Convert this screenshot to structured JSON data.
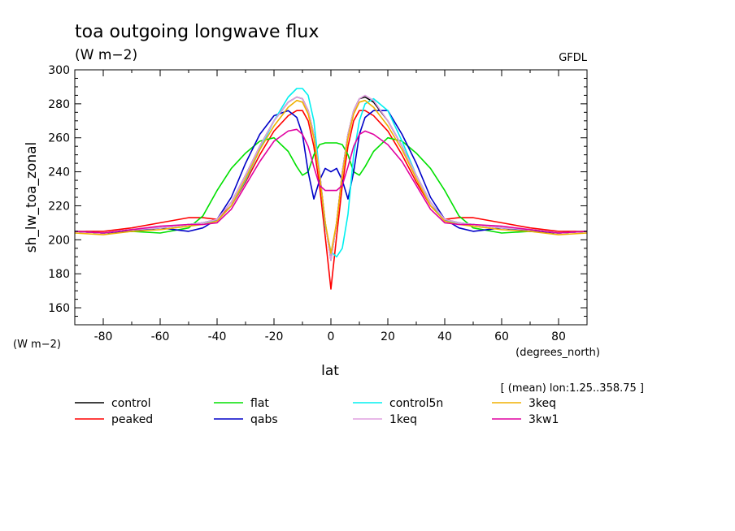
{
  "chart_data": {
    "type": "line",
    "title": "toa outgoing longwave flux",
    "subtitle": "(W m−2)",
    "source_label": "GFDL",
    "ylabel": "sh_lw_toa_zonal",
    "yunits": "(W m−2)",
    "xlabel": "lat",
    "xunits": "(degrees_north)",
    "note": "[ (mean) lon:1.25..358.75 ]",
    "xlim": [
      -90,
      90
    ],
    "ylim": [
      150,
      300
    ],
    "xticks": [
      -80,
      -60,
      -40,
      -20,
      0,
      20,
      40,
      60,
      80
    ],
    "yticks": [
      160,
      180,
      200,
      220,
      240,
      260,
      280,
      300
    ],
    "grid": false,
    "legend_position": "bottom",
    "x": [
      -90,
      -80,
      -70,
      -60,
      -50,
      -45,
      -40,
      -35,
      -30,
      -25,
      -20,
      -15,
      -12,
      -10,
      -8,
      -6,
      -4,
      -2,
      0,
      2,
      4,
      6,
      8,
      10,
      12,
      15,
      20,
      25,
      30,
      35,
      40,
      45,
      50,
      60,
      70,
      80,
      90
    ],
    "series": [
      {
        "name": "control",
        "color": "#000000",
        "values": [
          205,
          204,
          206,
          207,
          209,
          210,
          212,
          222,
          238,
          255,
          270,
          281,
          284,
          283,
          276,
          262,
          240,
          210,
          188,
          210,
          240,
          262,
          276,
          283,
          284,
          281,
          270,
          255,
          238,
          222,
          212,
          210,
          209,
          207,
          206,
          204,
          205
        ]
      },
      {
        "name": "peaked",
        "color": "#ff0000",
        "values": [
          205,
          205,
          207,
          210,
          213,
          213,
          212,
          220,
          234,
          250,
          264,
          273,
          276,
          276,
          270,
          255,
          232,
          202,
          171,
          202,
          232,
          255,
          270,
          276,
          276,
          273,
          264,
          250,
          234,
          220,
          212,
          213,
          213,
          210,
          207,
          205,
          205
        ]
      },
      {
        "name": "flat",
        "color": "#00e000",
        "values": [
          205,
          204,
          205,
          204,
          207,
          214,
          229,
          242,
          251,
          258,
          260,
          252,
          243,
          238,
          240,
          250,
          256,
          257,
          257,
          257,
          256,
          250,
          240,
          238,
          243,
          252,
          260,
          258,
          251,
          242,
          229,
          214,
          207,
          204,
          205,
          204,
          205
        ]
      },
      {
        "name": "qabs",
        "color": "#0000c8",
        "values": [
          205,
          204,
          205,
          207,
          205,
          207,
          212,
          225,
          245,
          262,
          273,
          276,
          272,
          262,
          240,
          224,
          235,
          242,
          240,
          242,
          235,
          224,
          240,
          262,
          272,
          276,
          276,
          262,
          245,
          225,
          212,
          207,
          205,
          207,
          205,
          204,
          205
        ]
      },
      {
        "name": "control5n",
        "color": "#00f0f0",
        "values": [
          205,
          204,
          206,
          207,
          209,
          210,
          211,
          220,
          235,
          253,
          270,
          284,
          289,
          289,
          285,
          270,
          240,
          208,
          193,
          190,
          195,
          215,
          250,
          270,
          280,
          283,
          276,
          258,
          238,
          222,
          211,
          210,
          209,
          207,
          206,
          204,
          205
        ]
      },
      {
        "name": "1keq",
        "color": "#e0a0e0",
        "values": [
          205,
          204,
          206,
          207,
          209,
          210,
          212,
          222,
          238,
          255,
          270,
          281,
          284,
          283,
          276,
          262,
          240,
          210,
          188,
          210,
          240,
          262,
          276,
          283,
          285,
          282,
          270,
          255,
          238,
          222,
          212,
          210,
          209,
          207,
          206,
          204,
          205
        ]
      },
      {
        "name": "3keq",
        "color": "#f0b000",
        "values": [
          204,
          203,
          205,
          206,
          208,
          209,
          211,
          220,
          236,
          253,
          267,
          278,
          282,
          281,
          274,
          260,
          238,
          210,
          192,
          210,
          238,
          260,
          274,
          281,
          282,
          278,
          267,
          253,
          236,
          220,
          211,
          209,
          208,
          206,
          205,
          203,
          204
        ]
      },
      {
        "name": "3kw1",
        "color": "#e000a0",
        "values": [
          205,
          204,
          206,
          208,
          209,
          209,
          210,
          218,
          232,
          246,
          258,
          264,
          265,
          262,
          255,
          243,
          232,
          229,
          229,
          229,
          232,
          243,
          255,
          262,
          264,
          262,
          256,
          246,
          232,
          218,
          210,
          209,
          209,
          208,
          206,
          204,
          205
        ]
      }
    ]
  }
}
